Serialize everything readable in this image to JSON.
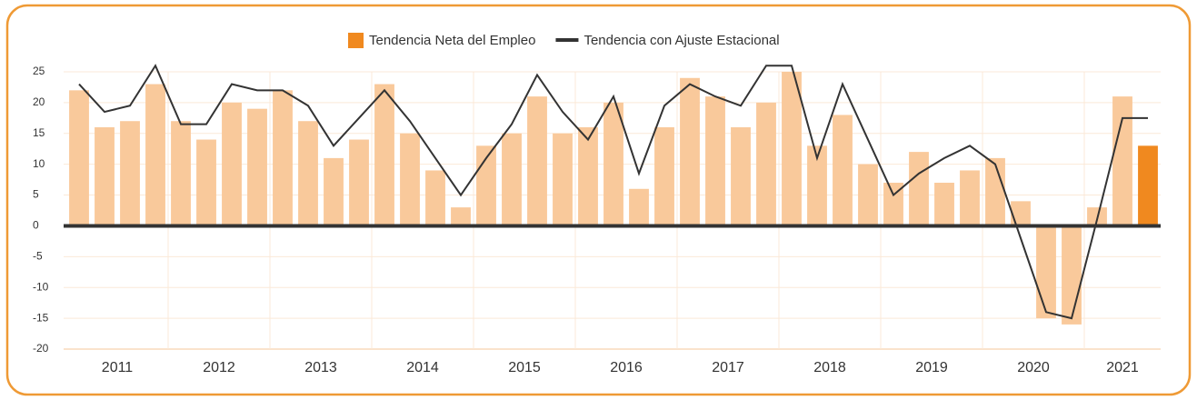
{
  "chart_data": {
    "type": "bar_line",
    "categories": [
      "2011",
      null,
      null,
      null,
      "2012",
      null,
      null,
      null,
      "2013",
      null,
      null,
      null,
      "2014",
      null,
      null,
      null,
      "2015",
      null,
      null,
      null,
      "2016",
      null,
      null,
      null,
      "2017",
      null,
      null,
      null,
      "2018",
      null,
      null,
      null,
      "2019",
      null,
      null,
      null,
      "2020",
      null,
      null,
      null,
      "2021",
      null,
      null
    ],
    "series": [
      {
        "name": "Tendencia Neta del Empleo",
        "type": "bar",
        "color": "#f0891f",
        "bar_colors": [
          "#f9c99b",
          "#f9c99b",
          "#f9c99b",
          "#f9c99b",
          "#f9c99b",
          "#f9c99b",
          "#f9c99b",
          "#f9c99b",
          "#f9c99b",
          "#f9c99b",
          "#f9c99b",
          "#f9c99b",
          "#f9c99b",
          "#f9c99b",
          "#f9c99b",
          "#f9c99b",
          "#f9c99b",
          "#f9c99b",
          "#f9c99b",
          "#f9c99b",
          "#f9c99b",
          "#f9c99b",
          "#f9c99b",
          "#f9c99b",
          "#f9c99b",
          "#f9c99b",
          "#f9c99b",
          "#f9c99b",
          "#f9c99b",
          "#f9c99b",
          "#f9c99b",
          "#f9c99b",
          "#f9c99b",
          "#f9c99b",
          "#f9c99b",
          "#f9c99b",
          "#f9c99b",
          "#f9c99b",
          "#f9c99b",
          "#f9c99b",
          "#f9c99b",
          "#f9c99b",
          "#f0891f"
        ],
        "values": [
          22,
          16,
          17,
          23,
          17,
          14,
          20,
          19,
          22,
          17,
          11,
          14,
          23,
          15,
          9,
          3,
          13,
          15,
          21,
          15,
          16,
          20,
          6,
          16,
          24,
          21,
          16,
          20,
          25,
          13,
          18,
          10,
          7,
          12,
          7,
          9,
          11,
          4,
          -15,
          -16,
          3,
          21,
          13
        ]
      },
      {
        "name": "Tendencia con Ajuste Estacional",
        "type": "line",
        "color": "#333333",
        "values": [
          23,
          18.5,
          19.5,
          26,
          16.5,
          16.5,
          23,
          22,
          22,
          19.5,
          13,
          17.5,
          22,
          17,
          11,
          5,
          11,
          16.5,
          24.5,
          18.5,
          14,
          21,
          8.5,
          19.5,
          23,
          21,
          19.5,
          26,
          26,
          11,
          23,
          14,
          5,
          8.5,
          11,
          13,
          10,
          -2,
          -14,
          -15,
          1,
          17.5,
          17.5
        ]
      }
    ],
    "ylim": [
      -20,
      25
    ],
    "yticks": [
      -20,
      -15,
      -10,
      -5,
      0,
      5,
      10,
      15,
      20,
      25
    ],
    "grid": true,
    "legend": "top"
  }
}
